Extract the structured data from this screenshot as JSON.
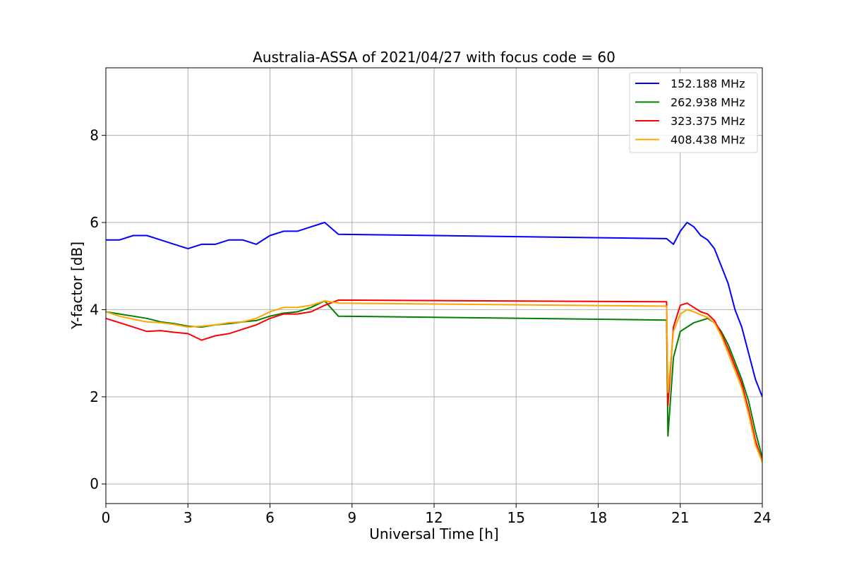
{
  "chart_data": {
    "type": "line",
    "title": "Australia-ASSA of 2021/04/27 with focus code = 60",
    "xlabel": "Universal Time [h]",
    "ylabel": "Y-factor [dB]",
    "xlim": [
      0,
      24
    ],
    "ylim": [
      -0.45,
      9.55
    ],
    "xticks": [
      0,
      3,
      6,
      9,
      12,
      15,
      18,
      21,
      24
    ],
    "yticks": [
      0,
      2,
      4,
      6,
      8
    ],
    "grid": true,
    "legend_position": "top-right",
    "series": [
      {
        "name": "152.188 MHz",
        "color": "#0000ff",
        "x": [
          0,
          0.5,
          1.0,
          1.5,
          2.0,
          2.5,
          3.0,
          3.5,
          4.0,
          4.5,
          5.0,
          5.5,
          6.0,
          6.5,
          7.0,
          7.5,
          8.0,
          8.5,
          20.5,
          20.75,
          21.0,
          21.25,
          21.5,
          21.75,
          22.0,
          22.25,
          22.5,
          22.75,
          23.0,
          23.25,
          23.5,
          23.75,
          24.0
        ],
        "y": [
          5.6,
          5.6,
          5.7,
          5.7,
          5.6,
          5.5,
          5.4,
          5.5,
          5.5,
          5.6,
          5.6,
          5.5,
          5.7,
          5.8,
          5.8,
          5.9,
          6.0,
          5.73,
          5.63,
          5.5,
          5.8,
          6.0,
          5.9,
          5.7,
          5.6,
          5.4,
          5.0,
          4.6,
          4.0,
          3.6,
          3.0,
          2.4,
          2.0
        ]
      },
      {
        "name": "262.938 MHz",
        "color": "#008000",
        "x": [
          0,
          0.5,
          1.0,
          1.5,
          2.0,
          2.5,
          3.0,
          3.5,
          4.0,
          4.5,
          5.0,
          5.5,
          6.0,
          6.5,
          7.0,
          7.5,
          8.0,
          8.5,
          20.5,
          20.55,
          20.75,
          21.0,
          21.25,
          21.5,
          21.75,
          22.0,
          22.25,
          22.5,
          22.75,
          23.0,
          23.25,
          23.5,
          23.75,
          24.0
        ],
        "y": [
          3.95,
          3.9,
          3.85,
          3.8,
          3.72,
          3.68,
          3.62,
          3.6,
          3.65,
          3.68,
          3.72,
          3.75,
          3.85,
          3.92,
          3.95,
          4.05,
          4.2,
          3.85,
          3.76,
          1.1,
          2.9,
          3.5,
          3.6,
          3.7,
          3.75,
          3.8,
          3.7,
          3.5,
          3.2,
          2.8,
          2.4,
          1.9,
          1.2,
          0.6
        ]
      },
      {
        "name": "323.375 MHz",
        "color": "#ff0000",
        "x": [
          0,
          0.5,
          1.0,
          1.5,
          2.0,
          2.5,
          3.0,
          3.5,
          4.0,
          4.5,
          5.0,
          5.5,
          6.0,
          6.5,
          7.0,
          7.5,
          8.0,
          8.5,
          20.5,
          20.55,
          20.75,
          21.0,
          21.25,
          21.5,
          21.75,
          22.0,
          22.25,
          22.5,
          22.75,
          23.0,
          23.25,
          23.5,
          23.75,
          24.0
        ],
        "y": [
          3.8,
          3.7,
          3.6,
          3.5,
          3.52,
          3.48,
          3.45,
          3.3,
          3.4,
          3.45,
          3.55,
          3.65,
          3.8,
          3.9,
          3.9,
          3.95,
          4.1,
          4.22,
          4.18,
          1.8,
          3.6,
          4.1,
          4.15,
          4.05,
          3.95,
          3.9,
          3.75,
          3.45,
          3.1,
          2.7,
          2.3,
          1.7,
          1.0,
          0.5
        ]
      },
      {
        "name": "408.438 MHz",
        "color": "#ffa500",
        "x": [
          0,
          0.5,
          1.0,
          1.5,
          2.0,
          2.5,
          3.0,
          3.5,
          4.0,
          4.5,
          5.0,
          5.5,
          6.0,
          6.5,
          7.0,
          7.5,
          8.0,
          8.5,
          20.5,
          20.55,
          20.75,
          21.0,
          21.25,
          21.5,
          21.75,
          22.0,
          22.25,
          22.5,
          22.75,
          23.0,
          23.25,
          23.5,
          23.75,
          24.0
        ],
        "y": [
          3.95,
          3.85,
          3.78,
          3.72,
          3.7,
          3.66,
          3.6,
          3.62,
          3.65,
          3.7,
          3.72,
          3.8,
          3.95,
          4.05,
          4.05,
          4.1,
          4.2,
          4.15,
          4.08,
          2.1,
          3.5,
          3.9,
          4.0,
          3.95,
          3.88,
          3.82,
          3.7,
          3.4,
          3.0,
          2.6,
          2.2,
          1.6,
          0.9,
          0.5
        ]
      }
    ]
  }
}
